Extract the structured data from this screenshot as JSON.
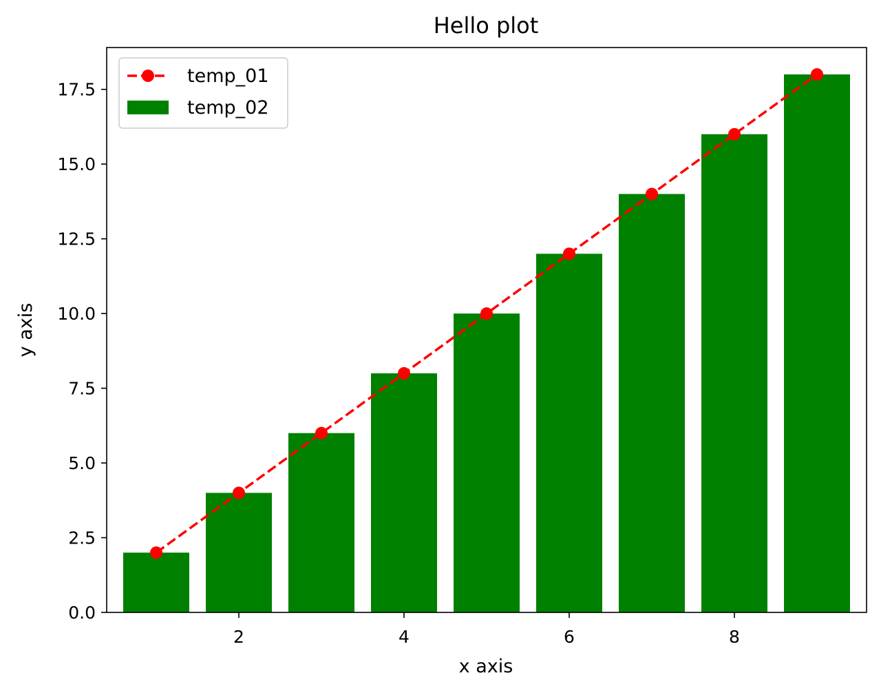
{
  "chart_data": {
    "type": "bar",
    "title": "Hello plot",
    "xlabel": "x axis",
    "ylabel": "y axis",
    "xlim": [
      0.4,
      9.6
    ],
    "ylim": [
      0,
      18.9
    ],
    "x_ticks": [
      2,
      4,
      6,
      8
    ],
    "x_tick_labels": [
      "2",
      "4",
      "6",
      "8"
    ],
    "y_ticks": [
      0,
      2.5,
      5,
      7.5,
      10,
      12.5,
      15,
      17.5
    ],
    "y_tick_labels": [
      "0.0",
      "2.5",
      "5.0",
      "7.5",
      "10.0",
      "12.5",
      "15.0",
      "17.5"
    ],
    "grid": false,
    "legend_position": "upper-left",
    "series": [
      {
        "name": "temp_01",
        "kind": "line",
        "style": "dashed",
        "marker": "circle",
        "color": "#ff0000",
        "x": [
          1,
          2,
          3,
          4,
          5,
          6,
          7,
          8,
          9
        ],
        "y": [
          2,
          4,
          6,
          8,
          10,
          12,
          14,
          16,
          18
        ]
      },
      {
        "name": "temp_02",
        "kind": "bar",
        "color": "#008000",
        "bar_width": 0.8,
        "x": [
          1,
          2,
          3,
          4,
          5,
          6,
          7,
          8,
          9
        ],
        "y": [
          2,
          4,
          6,
          8,
          10,
          12,
          14,
          16,
          18
        ]
      }
    ]
  }
}
